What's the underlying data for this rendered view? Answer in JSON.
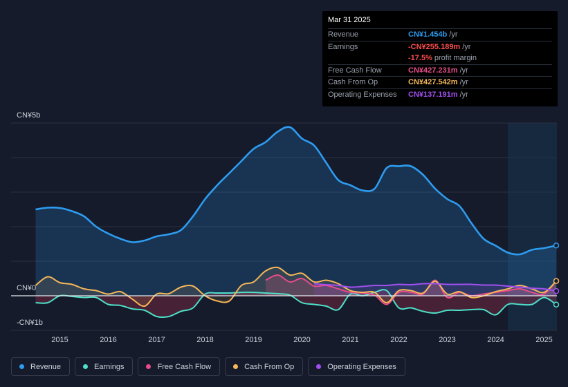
{
  "tooltip": {
    "date": "Mar 31 2025",
    "rows": [
      {
        "label": "Revenue",
        "value": "CN¥1.454b",
        "unit": "/yr",
        "color": "#2d9cf0"
      },
      {
        "label": "Earnings",
        "value": "-CN¥255.189m",
        "unit": "/yr",
        "color": "#ff4d4d"
      },
      {
        "label": "",
        "value": "-17.5%",
        "unit": "profit margin",
        "color": "#ff4d4d"
      },
      {
        "label": "Free Cash Flow",
        "value": "CN¥427.231m",
        "unit": "/yr",
        "color": "#e84c8a"
      },
      {
        "label": "Cash From Op",
        "value": "CN¥427.542m",
        "unit": "/yr",
        "color": "#f5b759"
      },
      {
        "label": "Operating Expenses",
        "value": "CN¥137.191m",
        "unit": "/yr",
        "color": "#a24ff0"
      }
    ]
  },
  "chart_data": {
    "type": "area",
    "currency": "CN¥",
    "y_axis_labels": [
      "CN¥5b",
      "CN¥0",
      "-CN¥1b"
    ],
    "ylim": [
      -1,
      5
    ],
    "y_unit": "billion CN¥",
    "xlim": [
      2014.45,
      2025.25
    ],
    "x_ticks": [
      "2015",
      "2016",
      "2017",
      "2018",
      "2019",
      "2020",
      "2021",
      "2022",
      "2023",
      "2024",
      "2025"
    ],
    "forecast_shade_start": 2024.25,
    "series": [
      {
        "name": "Revenue",
        "color": "#2d9cf0",
        "points": [
          [
            2014.5,
            2.5
          ],
          [
            2014.75,
            2.55
          ],
          [
            2015.0,
            2.54
          ],
          [
            2015.25,
            2.45
          ],
          [
            2015.5,
            2.3
          ],
          [
            2015.75,
            2.0
          ],
          [
            2016.0,
            1.8
          ],
          [
            2016.25,
            1.65
          ],
          [
            2016.5,
            1.55
          ],
          [
            2016.75,
            1.6
          ],
          [
            2017.0,
            1.72
          ],
          [
            2017.25,
            1.78
          ],
          [
            2017.5,
            1.9
          ],
          [
            2017.75,
            2.3
          ],
          [
            2018.0,
            2.8
          ],
          [
            2018.25,
            3.2
          ],
          [
            2018.5,
            3.55
          ],
          [
            2018.75,
            3.9
          ],
          [
            2019.0,
            4.25
          ],
          [
            2019.25,
            4.45
          ],
          [
            2019.5,
            4.75
          ],
          [
            2019.75,
            4.88
          ],
          [
            2020.0,
            4.55
          ],
          [
            2020.25,
            4.35
          ],
          [
            2020.5,
            3.85
          ],
          [
            2020.75,
            3.35
          ],
          [
            2021.0,
            3.2
          ],
          [
            2021.25,
            3.05
          ],
          [
            2021.5,
            3.1
          ],
          [
            2021.75,
            3.7
          ],
          [
            2022.0,
            3.75
          ],
          [
            2022.25,
            3.75
          ],
          [
            2022.5,
            3.5
          ],
          [
            2022.75,
            3.1
          ],
          [
            2023.0,
            2.8
          ],
          [
            2023.25,
            2.6
          ],
          [
            2023.5,
            2.1
          ],
          [
            2023.75,
            1.65
          ],
          [
            2024.0,
            1.45
          ],
          [
            2024.25,
            1.25
          ],
          [
            2024.5,
            1.2
          ],
          [
            2024.75,
            1.33
          ],
          [
            2025.0,
            1.38
          ],
          [
            2025.25,
            1.454
          ]
        ]
      },
      {
        "name": "Earnings",
        "color": "#4ee0c8",
        "points": [
          [
            2014.5,
            -0.2
          ],
          [
            2014.75,
            -0.2
          ],
          [
            2015.0,
            -0.0
          ],
          [
            2015.25,
            -0.02
          ],
          [
            2015.5,
            -0.05
          ],
          [
            2015.75,
            -0.05
          ],
          [
            2016.0,
            -0.25
          ],
          [
            2016.25,
            -0.28
          ],
          [
            2016.5,
            -0.38
          ],
          [
            2016.75,
            -0.42
          ],
          [
            2017.0,
            -0.6
          ],
          [
            2017.25,
            -0.6
          ],
          [
            2017.5,
            -0.45
          ],
          [
            2017.75,
            -0.35
          ],
          [
            2018.0,
            0.05
          ],
          [
            2018.25,
            0.08
          ],
          [
            2018.5,
            0.08
          ],
          [
            2018.75,
            0.1
          ],
          [
            2019.0,
            0.1
          ],
          [
            2019.25,
            0.08
          ],
          [
            2019.5,
            0.06
          ],
          [
            2019.75,
            0.02
          ],
          [
            2020.0,
            -0.2
          ],
          [
            2020.25,
            -0.25
          ],
          [
            2020.5,
            -0.3
          ],
          [
            2020.75,
            -0.4
          ],
          [
            2021.0,
            0.05
          ],
          [
            2021.25,
            0.0
          ],
          [
            2021.5,
            0.1
          ],
          [
            2021.75,
            0.15
          ],
          [
            2022.0,
            -0.35
          ],
          [
            2022.25,
            -0.35
          ],
          [
            2022.5,
            -0.45
          ],
          [
            2022.75,
            -0.5
          ],
          [
            2023.0,
            -0.42
          ],
          [
            2023.25,
            -0.42
          ],
          [
            2023.5,
            -0.4
          ],
          [
            2023.75,
            -0.4
          ],
          [
            2024.0,
            -0.55
          ],
          [
            2024.25,
            -0.25
          ],
          [
            2024.5,
            -0.25
          ],
          [
            2024.75,
            -0.25
          ],
          [
            2025.0,
            -0.05
          ],
          [
            2025.25,
            -0.255
          ]
        ]
      },
      {
        "name": "Free Cash Flow",
        "color": "#e84c8a",
        "points": [
          [
            2019.25,
            0.45
          ],
          [
            2019.5,
            0.6
          ],
          [
            2019.75,
            0.4
          ],
          [
            2020.0,
            0.5
          ],
          [
            2020.25,
            0.28
          ],
          [
            2020.5,
            0.3
          ],
          [
            2020.75,
            0.2
          ],
          [
            2021.0,
            0.1
          ],
          [
            2021.25,
            0.08
          ],
          [
            2021.5,
            0.02
          ],
          [
            2021.75,
            -0.25
          ],
          [
            2022.0,
            0.1
          ],
          [
            2022.25,
            0.1
          ],
          [
            2022.5,
            0.05
          ],
          [
            2022.75,
            0.45
          ],
          [
            2023.0,
            -0.05
          ],
          [
            2023.25,
            0.1
          ],
          [
            2023.5,
            0.0
          ],
          [
            2023.75,
            0.05
          ],
          [
            2024.0,
            0.1
          ],
          [
            2024.25,
            0.15
          ],
          [
            2024.5,
            0.2
          ],
          [
            2024.75,
            0.1
          ],
          [
            2025.0,
            0.05
          ],
          [
            2025.25,
            0.427
          ]
        ]
      },
      {
        "name": "Cash From Op",
        "color": "#f5b759",
        "points": [
          [
            2014.5,
            0.3
          ],
          [
            2014.75,
            0.55
          ],
          [
            2015.0,
            0.38
          ],
          [
            2015.25,
            0.33
          ],
          [
            2015.5,
            0.2
          ],
          [
            2015.75,
            0.15
          ],
          [
            2016.0,
            0.05
          ],
          [
            2016.25,
            0.12
          ],
          [
            2016.5,
            -0.1
          ],
          [
            2016.75,
            -0.3
          ],
          [
            2017.0,
            0.05
          ],
          [
            2017.25,
            0.06
          ],
          [
            2017.5,
            0.25
          ],
          [
            2017.75,
            0.28
          ],
          [
            2018.0,
            0.0
          ],
          [
            2018.25,
            -0.15
          ],
          [
            2018.5,
            -0.15
          ],
          [
            2018.75,
            0.3
          ],
          [
            2019.0,
            0.4
          ],
          [
            2019.25,
            0.72
          ],
          [
            2019.5,
            0.82
          ],
          [
            2019.75,
            0.6
          ],
          [
            2020.0,
            0.65
          ],
          [
            2020.25,
            0.4
          ],
          [
            2020.5,
            0.45
          ],
          [
            2020.75,
            0.35
          ],
          [
            2021.0,
            0.15
          ],
          [
            2021.25,
            0.1
          ],
          [
            2021.5,
            0.1
          ],
          [
            2021.75,
            -0.2
          ],
          [
            2022.0,
            0.15
          ],
          [
            2022.25,
            0.15
          ],
          [
            2022.5,
            0.08
          ],
          [
            2022.75,
            0.42
          ],
          [
            2023.0,
            0.05
          ],
          [
            2023.25,
            0.12
          ],
          [
            2023.5,
            -0.05
          ],
          [
            2023.75,
            0.0
          ],
          [
            2024.0,
            0.12
          ],
          [
            2024.25,
            0.2
          ],
          [
            2024.5,
            0.3
          ],
          [
            2024.75,
            0.2
          ],
          [
            2025.0,
            0.1
          ],
          [
            2025.25,
            0.428
          ]
        ]
      },
      {
        "name": "Operating Expenses",
        "color": "#a24ff0",
        "points": [
          [
            2020.25,
            0.35
          ],
          [
            2020.5,
            0.32
          ],
          [
            2020.75,
            0.3
          ],
          [
            2021.0,
            0.25
          ],
          [
            2021.25,
            0.27
          ],
          [
            2021.5,
            0.3
          ],
          [
            2021.75,
            0.3
          ],
          [
            2022.0,
            0.33
          ],
          [
            2022.25,
            0.32
          ],
          [
            2022.5,
            0.35
          ],
          [
            2022.75,
            0.35
          ],
          [
            2023.0,
            0.33
          ],
          [
            2023.25,
            0.33
          ],
          [
            2023.5,
            0.33
          ],
          [
            2023.75,
            0.31
          ],
          [
            2024.0,
            0.31
          ],
          [
            2024.25,
            0.28
          ],
          [
            2024.5,
            0.25
          ],
          [
            2024.75,
            0.22
          ],
          [
            2025.0,
            0.2
          ],
          [
            2025.25,
            0.137
          ]
        ]
      }
    ]
  },
  "legend": [
    {
      "label": "Revenue",
      "color": "#2d9cf0"
    },
    {
      "label": "Earnings",
      "color": "#4ee0c8"
    },
    {
      "label": "Free Cash Flow",
      "color": "#e84c8a"
    },
    {
      "label": "Cash From Op",
      "color": "#f5b759"
    },
    {
      "label": "Operating Expenses",
      "color": "#a24ff0"
    }
  ]
}
